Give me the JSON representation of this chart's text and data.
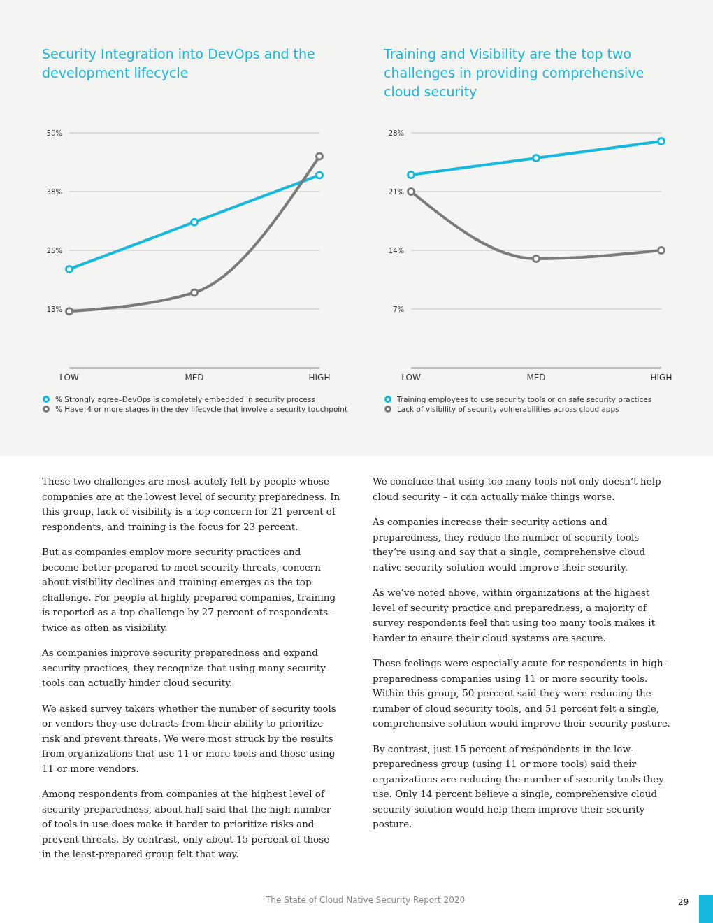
{
  "chart_data": [
    {
      "type": "line",
      "title": "Security Integration into DevOps and the development lifecycle",
      "categories": [
        "LOW",
        "MED",
        "HIGH"
      ],
      "series": [
        {
          "name": "% Strongly agree–DevOps is completely embedded in security process",
          "color": "#16b8e0",
          "values": [
            21,
            31,
            41
          ]
        },
        {
          "name": "% Have–4 or more stages in the dev lifecycle that involve a security touchpoint",
          "color": "#7a7a7a",
          "values": [
            12,
            16,
            45
          ]
        }
      ],
      "ylim": [
        0,
        50
      ],
      "yticks": [
        {
          "value": 12.5,
          "label": "13%"
        },
        {
          "value": 25,
          "label": "25%"
        },
        {
          "value": 37.5,
          "label": "38%"
        },
        {
          "value": 50,
          "label": "50%"
        }
      ],
      "grid": "y",
      "legend": "bottom left",
      "marker": "circle",
      "line_style": "solid"
    },
    {
      "type": "line",
      "title": "Training and Visibility are the top two challenges in providing comprehensive cloud security",
      "categories": [
        "LOW",
        "MED",
        "HIGH"
      ],
      "series": [
        {
          "name": "Training employees to use security tools or on safe security practices",
          "color": "#16b8e0",
          "values": [
            23,
            25,
            27
          ]
        },
        {
          "name": "Lack of visibility of security vulnerabilities across cloud apps",
          "color": "#7a7a7a",
          "values": [
            21,
            13,
            14
          ]
        }
      ],
      "ylim": [
        0,
        28
      ],
      "yticks": [
        {
          "value": 7,
          "label": "7%"
        },
        {
          "value": 14,
          "label": "14%"
        },
        {
          "value": 21,
          "label": "21%"
        },
        {
          "value": 28,
          "label": "28%"
        }
      ],
      "grid": "y",
      "legend": "bottom left",
      "marker": "circle",
      "line_style": "solid"
    },
    {
      "type": "other",
      "annotations": [
        "These two challenges are most acutely felt by people whose companies are at the lowest level of security preparedness. In this group, lack of visibility is a top concern for 21 percent of respondents, and training is the focus for 23 percent.",
        "But as companies employ more security practices and become better prepared to meet security threats, concern about visibility declines and training emerges as the top challenge. For people at highly prepared companies, training is reported as a top challenge by 27 percent of respondents – twice as often as visibility.",
        "As companies improve security preparedness and expand security practices, they recognize that using many security tools can actually hinder cloud security.",
        "We asked survey takers whether the number of security tools or vendors they use detracts from their ability to prioritize risk and prevent threats. We were most struck by the results from organizations that use 11 or more tools and those using 11 or more vendors.",
        "Among respondents from companies at the highest level of security preparedness, about half said that the high number of tools in use does make it harder to prioritize risks and prevent threats. By contrast, only about 15 percent of those in the least-prepared group felt that way.",
        "We conclude that using too many tools not only doesn’t help cloud security – it can actually make things worse.",
        "As companies increase their security actions and preparedness, they reduce the number of security tools they’re using and say that a single, comprehensive cloud native security solution would improve their security.",
        "As we’ve noted above, within organizations at the highest level of security practice and preparedness, a majority of survey respondents feel that using too many tools makes it harder to ensure their cloud systems are secure.",
        "These feelings were especially acute for respondents in high-preparedness companies using 11 or more security tools. Within this group, 50 percent said they were reducing the number of cloud security tools, and 51 percent felt a single, comprehensive solution would improve their security posture.",
        "By contrast, just 15 percent of respondents in the low-preparedness group (using 11 or more tools) said their organizations are reducing the number of security tools they use. Only 14 percent believe a single, comprehensive cloud security solution would help them improve their security posture.",
        "The State of Cloud Native Security Report 2020",
        "29"
      ]
    }
  ]
}
